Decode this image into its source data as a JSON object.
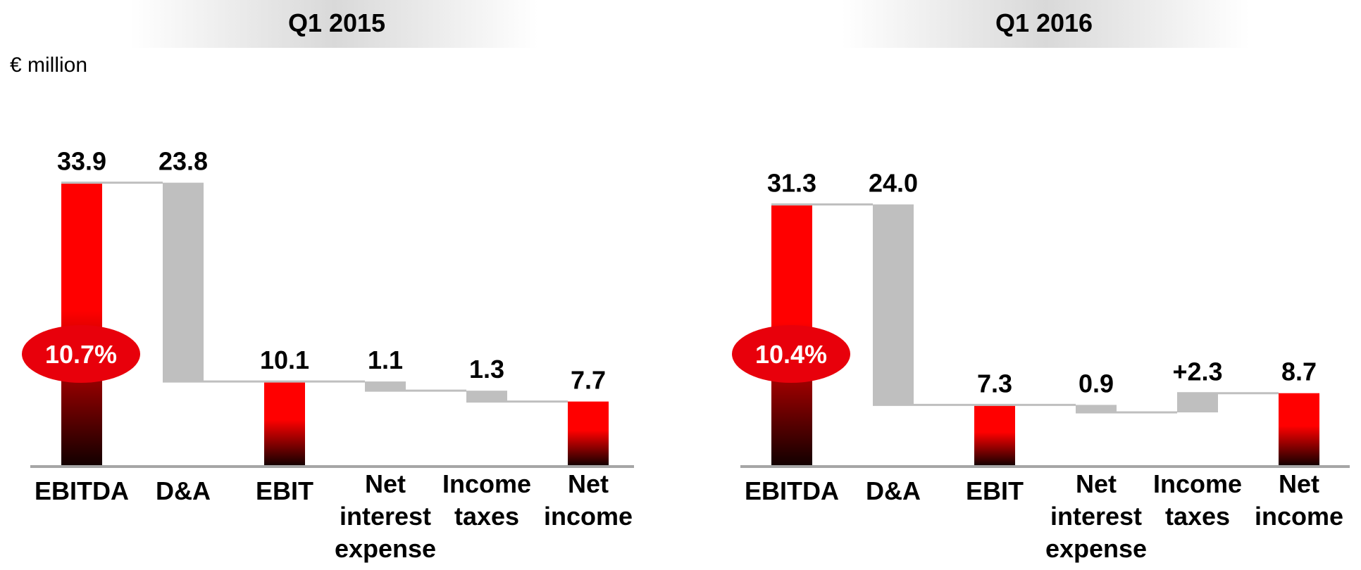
{
  "unit_label": "€ million",
  "chart_data": [
    {
      "type": "waterfall",
      "title": "Q1 2015",
      "categories": [
        "EBITDA",
        "D&A",
        "EBIT",
        "Net interest expense",
        "Income taxes",
        "Net income"
      ],
      "values": [
        33.9,
        23.8,
        10.1,
        1.1,
        1.3,
        7.7
      ],
      "value_labels": [
        "33.9",
        "23.8",
        "10.1",
        "1.1",
        "1.3",
        "7.7"
      ],
      "measures": [
        "total",
        "decrease",
        "total",
        "decrease",
        "decrease",
        "total"
      ],
      "annotation": {
        "value": 10.7,
        "label": "10.7%"
      },
      "total_color": "#ff0000",
      "change_color": "#bfbfbf"
    },
    {
      "type": "waterfall",
      "title": "Q1 2016",
      "categories": [
        "EBITDA",
        "D&A",
        "EBIT",
        "Net interest expense",
        "Income taxes",
        "Net income"
      ],
      "values": [
        31.3,
        24.0,
        7.3,
        0.9,
        2.3,
        8.7
      ],
      "value_labels": [
        "31.3",
        "24.0",
        "7.3",
        "0.9",
        "+2.3",
        "8.7"
      ],
      "measures": [
        "total",
        "decrease",
        "total",
        "decrease",
        "increase",
        "total"
      ],
      "annotation": {
        "value": 10.4,
        "label": "10.4%"
      },
      "total_color": "#ff0000",
      "change_color": "#bfbfbf"
    }
  ]
}
